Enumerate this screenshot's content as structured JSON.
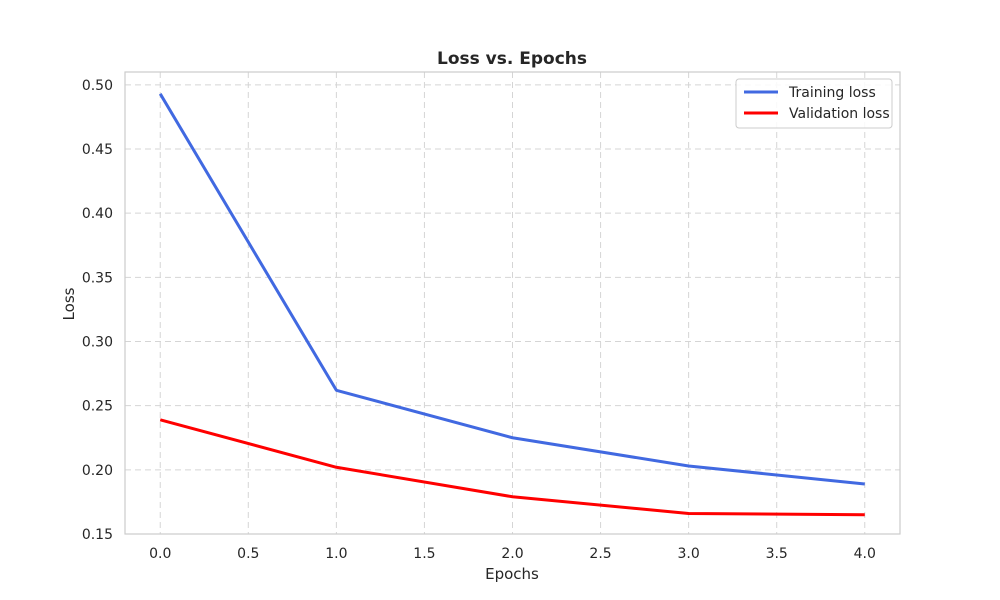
{
  "chart_data": {
    "type": "line",
    "title": "Loss vs. Epochs",
    "xlabel": "Epochs",
    "ylabel": "Loss",
    "x": [
      0,
      1,
      2,
      3,
      4
    ],
    "xlim": [
      -0.2,
      4.2
    ],
    "ylim": [
      0.15,
      0.51
    ],
    "xticks": [
      0,
      0.5,
      1,
      1.5,
      2,
      2.5,
      3,
      3.5,
      4
    ],
    "xtick_labels": [
      "0.0",
      "0.5",
      "1.0",
      "1.5",
      "2.0",
      "2.5",
      "3.0",
      "3.5",
      "4.0"
    ],
    "yticks": [
      0.15,
      0.2,
      0.25,
      0.3,
      0.35,
      0.4,
      0.45,
      0.5
    ],
    "ytick_labels": [
      "0.15",
      "0.20",
      "0.25",
      "0.30",
      "0.35",
      "0.40",
      "0.45",
      "0.50"
    ],
    "grid": true,
    "legend_position": "top-right",
    "series": [
      {
        "name": "Training loss",
        "color": "#4169e1",
        "values": [
          0.493,
          0.262,
          0.225,
          0.203,
          0.189
        ]
      },
      {
        "name": "Validation loss",
        "color": "#ff0000",
        "values": [
          0.239,
          0.202,
          0.179,
          0.166,
          0.165
        ]
      }
    ]
  }
}
